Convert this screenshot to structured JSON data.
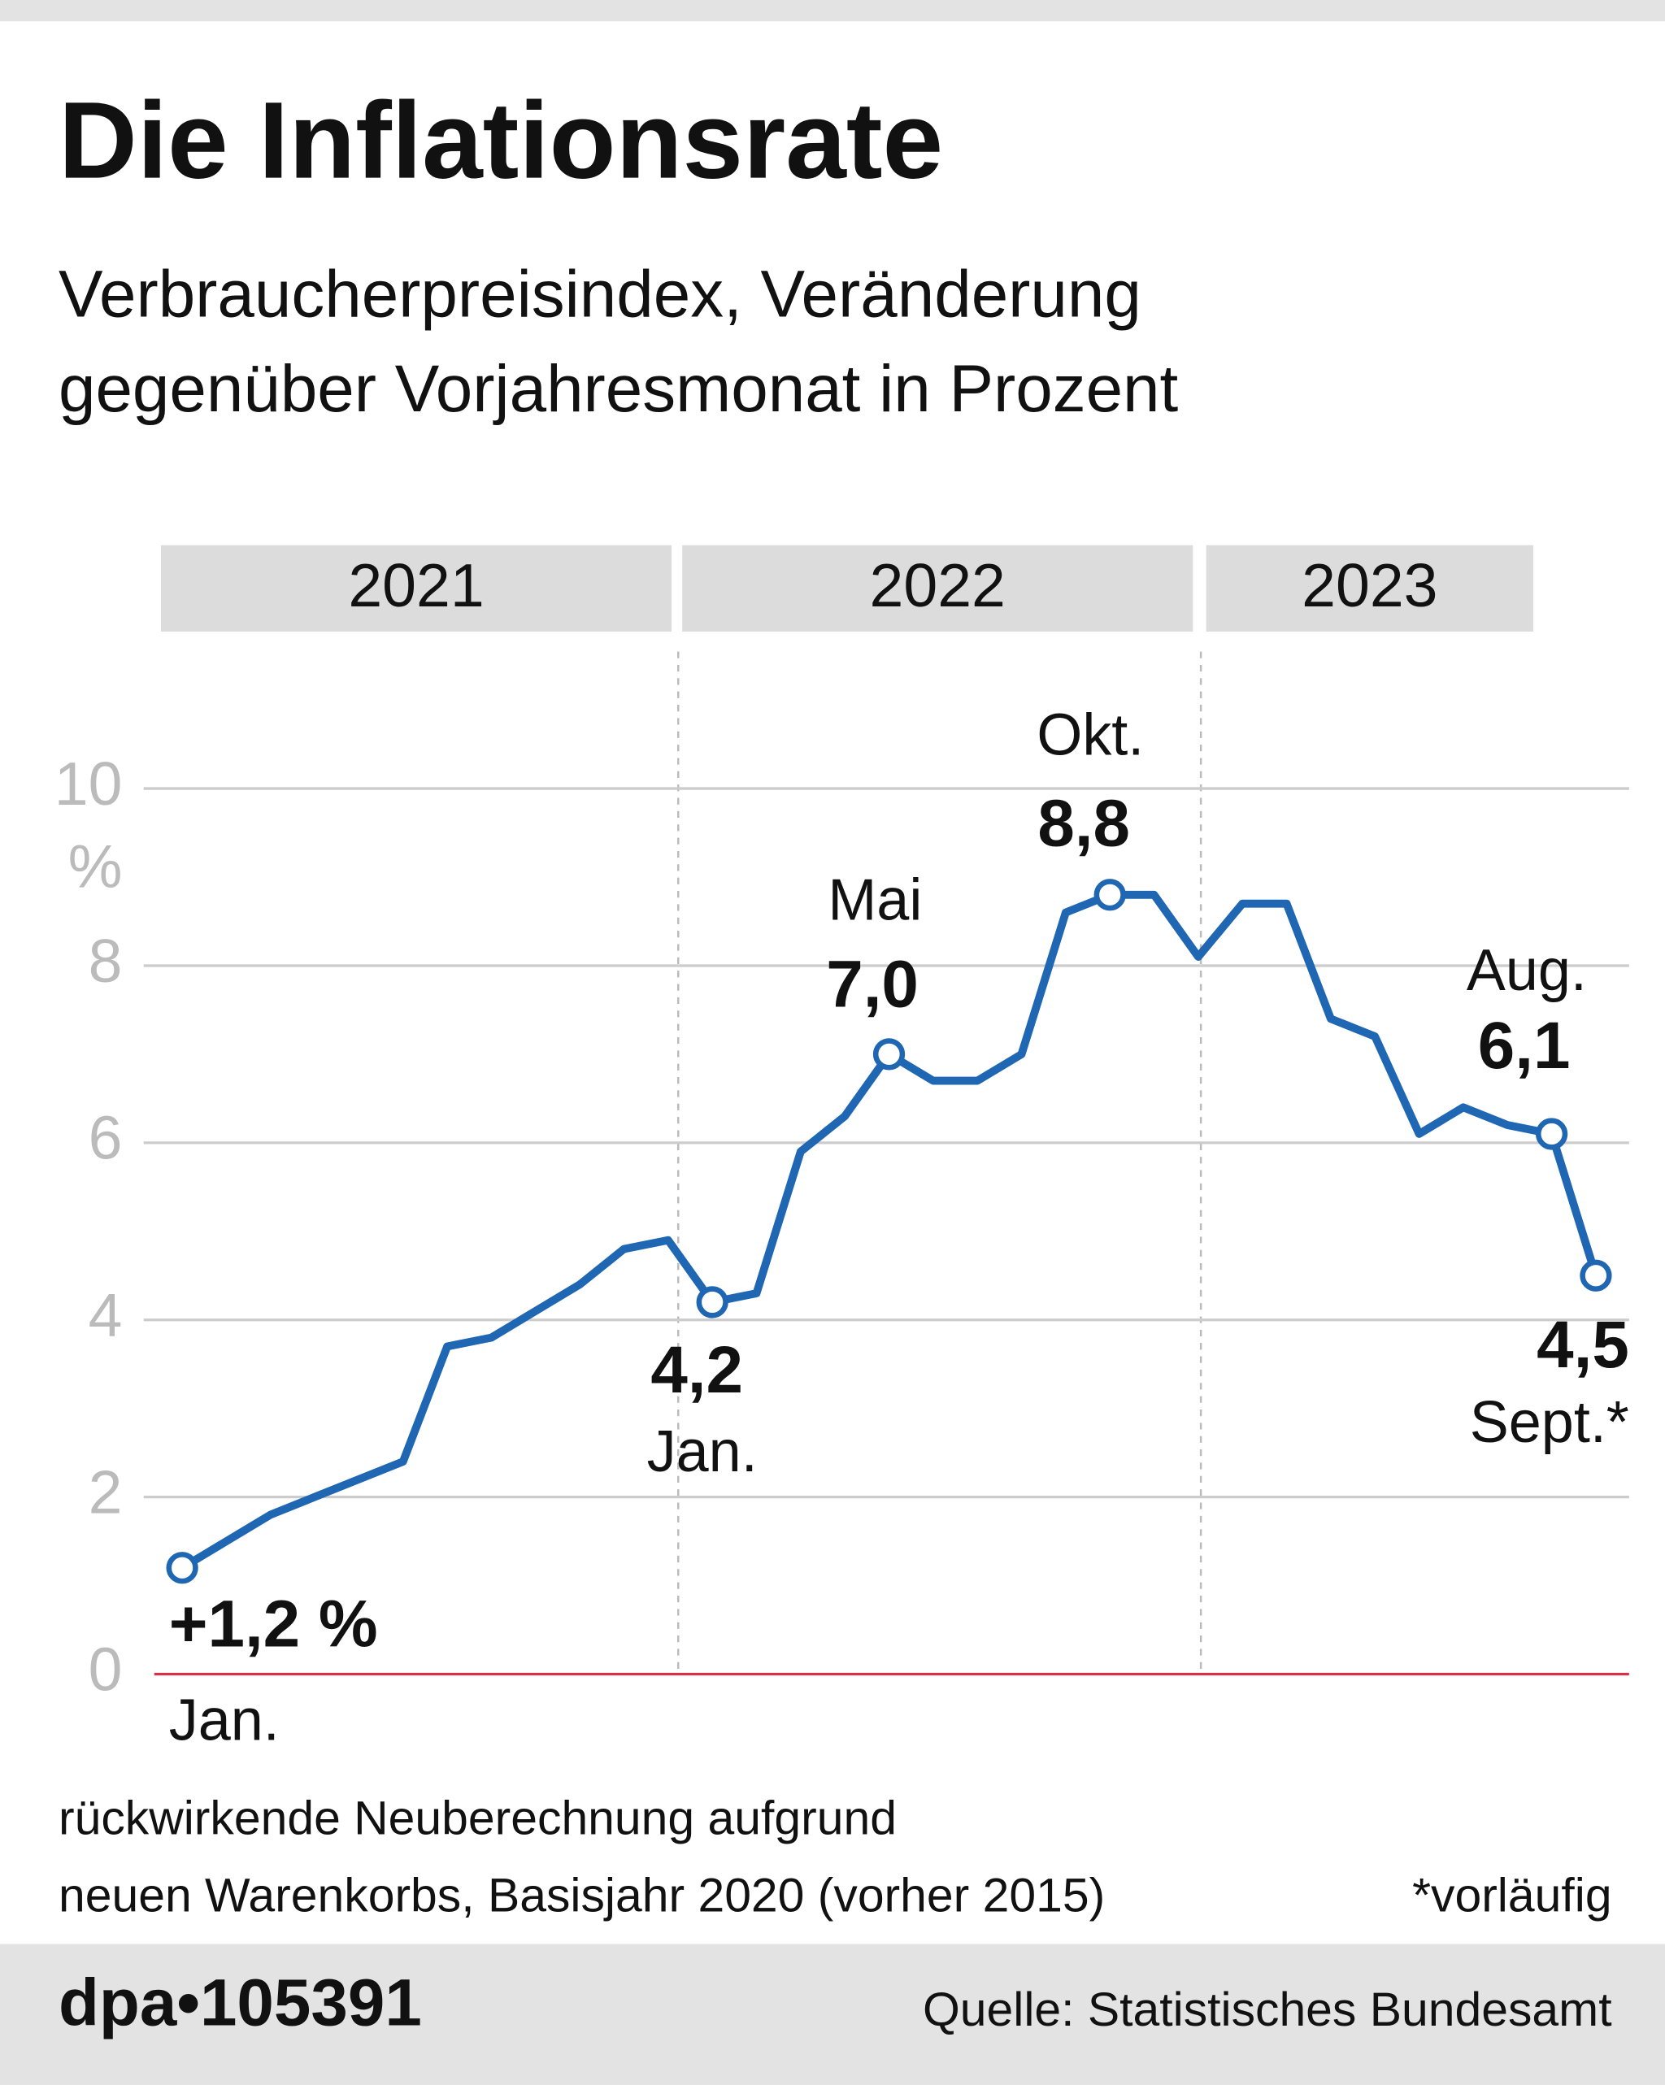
{
  "chart_data": {
    "type": "line",
    "title": "Die Inflationsrate",
    "subtitle": [
      "Verbraucherpreisindex, Veränderung",
      "gegenüber Vorjahresmonat in Prozent"
    ],
    "year_bands": [
      "2021",
      "2022",
      "2023"
    ],
    "categories": [
      "Jan.",
      null,
      null,
      null,
      null,
      null,
      null,
      null,
      null,
      null,
      null,
      null,
      "Jan.",
      null,
      null,
      null,
      "Mai",
      null,
      null,
      null,
      null,
      "Okt.",
      null,
      null,
      null,
      null,
      null,
      null,
      null,
      null,
      null,
      "Aug.",
      "Sept.*"
    ],
    "series": [
      {
        "name": "Inflationsrate",
        "color": "#1f66b3",
        "values": [
          1.2,
          1.5,
          1.8,
          2.0,
          2.2,
          2.4,
          3.7,
          3.8,
          4.1,
          4.4,
          4.8,
          4.9,
          4.2,
          4.3,
          5.9,
          6.3,
          7.0,
          6.7,
          6.7,
          7.0,
          8.6,
          8.8,
          8.8,
          8.1,
          8.7,
          8.7,
          7.4,
          7.2,
          6.1,
          6.4,
          6.2,
          6.1,
          4.5
        ],
        "value_labels": [
          "+1,2 %",
          null,
          null,
          null,
          null,
          null,
          null,
          null,
          null,
          null,
          null,
          null,
          "4,2",
          null,
          null,
          null,
          "7,0",
          null,
          null,
          null,
          null,
          "8,8",
          null,
          null,
          null,
          null,
          null,
          null,
          null,
          null,
          null,
          "6,1",
          "4,5"
        ]
      }
    ],
    "ylim": [
      0,
      10
    ],
    "yticks": [
      0,
      2,
      4,
      6,
      8,
      10
    ],
    "y_unit": "%",
    "grid": true,
    "zero_line_color": "#d9304a",
    "footnote": [
      "rückwirkende Neuberechnung aufgrund",
      "neuen Warenkorbs, Basisjahr 2020 (vorher 2015)"
    ],
    "note": "*vorläufig",
    "id": "dpa•105391",
    "source": "Quelle: Statistisches Bundesamt"
  }
}
